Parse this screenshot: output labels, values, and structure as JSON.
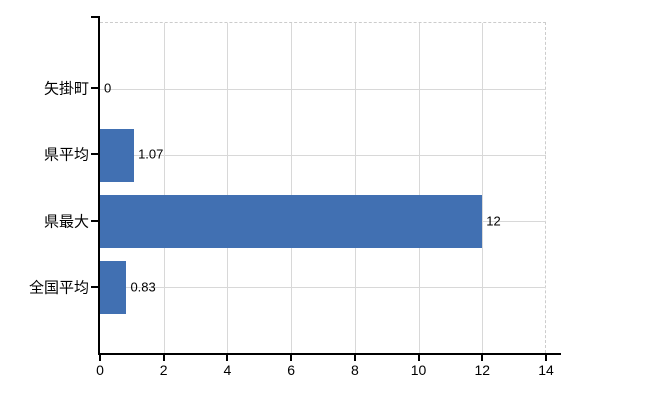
{
  "chart": {
    "background_color": "#ffffff",
    "bar_color": "#4170b2",
    "grid_color": "#d8d8d8",
    "border_color": "#cccccc",
    "axis_color": "#000000",
    "text_color": "#000000"
  },
  "chart_data": {
    "type": "bar",
    "orientation": "horizontal",
    "title": "",
    "xlabel": "",
    "ylabel": "",
    "categories": [
      "矢掛町",
      "県平均",
      "県最大",
      "全国平均"
    ],
    "values": [
      0,
      1.07,
      12,
      0.83
    ],
    "value_labels": [
      "0",
      "1.07",
      "12",
      "0.83"
    ],
    "xlim": [
      0,
      14
    ],
    "xticks": [
      0,
      2,
      4,
      6,
      8,
      10,
      12,
      14
    ],
    "grid": true,
    "legend": "none"
  }
}
